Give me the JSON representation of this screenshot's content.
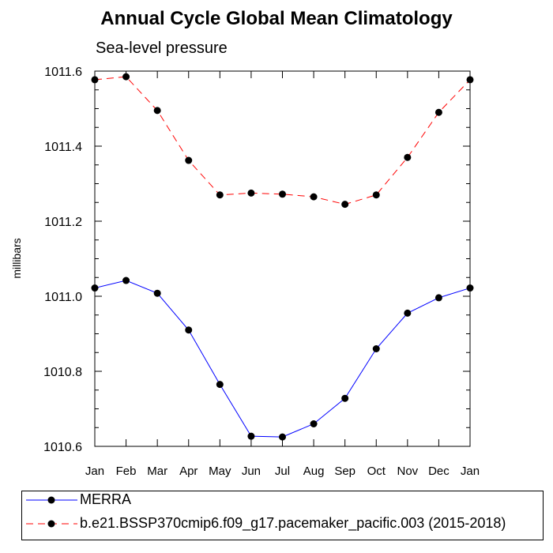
{
  "chart_data": {
    "type": "line",
    "title": "Annual Cycle Global Mean Climatology",
    "subtitle": "Sea-level pressure",
    "ylabel": "millibars",
    "xlabel": "",
    "categories": [
      "Jan",
      "Feb",
      "Mar",
      "Apr",
      "May",
      "Jun",
      "Jul",
      "Aug",
      "Sep",
      "Oct",
      "Nov",
      "Dec",
      "Jan"
    ],
    "ylim": [
      1010.6,
      1011.6
    ],
    "yticks": [
      "1010.6",
      "1010.8",
      "1011.0",
      "1011.2",
      "1011.4",
      "1011.6"
    ],
    "ytick_values": [
      1010.6,
      1010.8,
      1011.0,
      1011.2,
      1011.4,
      1011.6
    ],
    "series": [
      {
        "name": "MERRA",
        "color": "#0000ff",
        "dash": "solid",
        "values": [
          1011.022,
          1011.042,
          1011.008,
          1010.91,
          1010.765,
          1010.627,
          1010.625,
          1010.66,
          1010.728,
          1010.86,
          1010.955,
          1010.996,
          1011.022
        ]
      },
      {
        "name": "b.e21.BSSP370cmip6.f09_g17.pacemaker_pacific.003 (2015-2018)",
        "color": "#ff0000",
        "dash": "dashed",
        "values": [
          1011.577,
          1011.585,
          1011.495,
          1011.362,
          1011.27,
          1011.275,
          1011.272,
          1011.265,
          1011.245,
          1011.27,
          1011.37,
          1011.49,
          1011.577
        ]
      }
    ],
    "legend_position": "bottom"
  }
}
